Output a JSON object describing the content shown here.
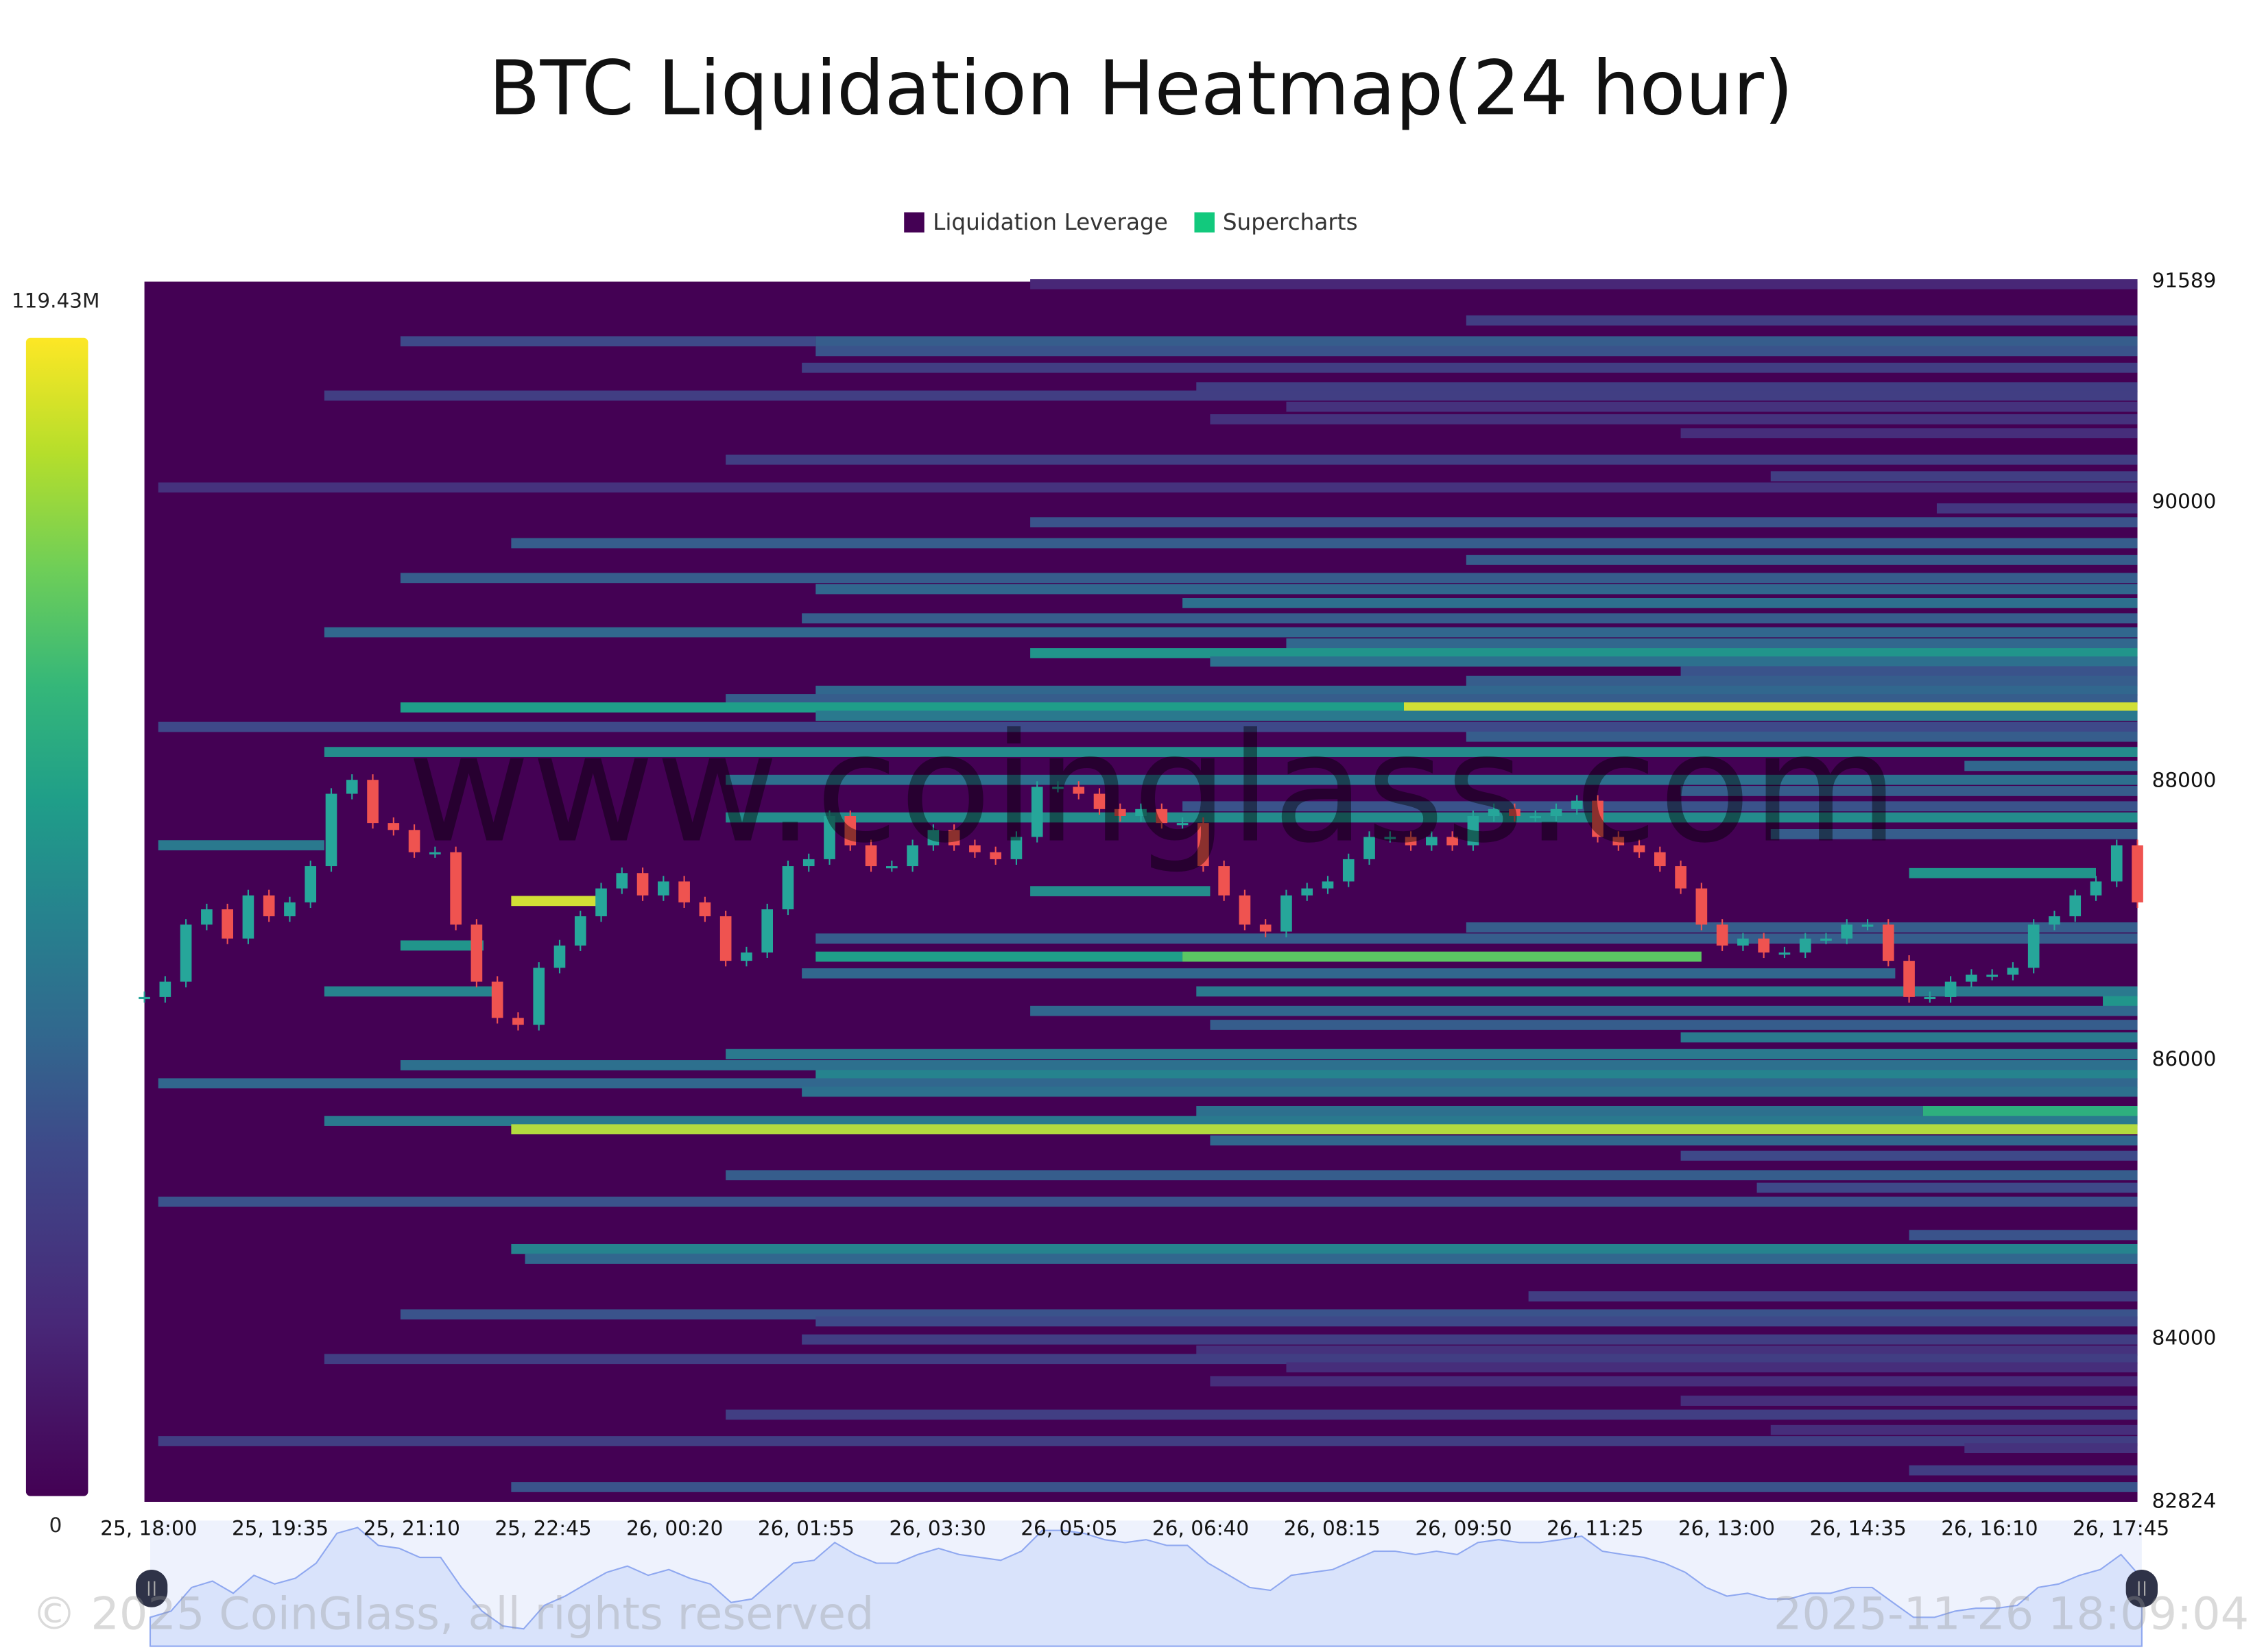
{
  "title": "BTC Liquidation Heatmap(24 hour)",
  "legend": [
    {
      "label": "Liquidation Leverage",
      "color": "#440154"
    },
    {
      "label": "Supercharts",
      "color": "#12c97d"
    }
  ],
  "watermark": "www.coinglass.com",
  "footer": {
    "copyright": "© 2025 CoinGlass, all rights reserved",
    "timestamp": "2025-11-26 18:09:04"
  },
  "colorbar": {
    "max_label": "119.43M",
    "min_label": "0",
    "max": 119.43,
    "min": 0,
    "colormap": "viridis"
  },
  "chart_data": {
    "type": "heatmap",
    "title": "BTC Liquidation Heatmap(24 hour)",
    "ylim": [
      82824,
      91589
    ],
    "y_ticks": [
      "91589",
      "90000",
      "88000",
      "86000",
      "84000",
      "82824"
    ],
    "x_range": [
      "25, 18:00",
      "26, 18:00"
    ],
    "x_ticks": [
      "25, 18:00",
      "25, 19:35",
      "25, 21:10",
      "25, 22:45",
      "26, 00:20",
      "26, 01:55",
      "26, 03:30",
      "26, 05:05",
      "26, 06:40",
      "26, 08:15",
      "26, 09:50",
      "26, 11:25",
      "26, 13:00",
      "26, 14:35",
      "26, 16:10",
      "26, 17:45"
    ],
    "background_value": 0,
    "bands_columns": [
      "price",
      "start",
      "end",
      "value_M"
    ],
    "bands": [
      [
        91570,
        "26, 04:40",
        "26, 18:00",
        15
      ],
      [
        91310,
        "26, 09:55",
        "26, 18:00",
        25
      ],
      [
        91160,
        "25, 21:05",
        "26, 02:05",
        30
      ],
      [
        91160,
        "26, 02:05",
        "26, 18:00",
        40
      ],
      [
        91090,
        "26, 02:05",
        "26, 18:00",
        35
      ],
      [
        90970,
        "26, 01:55",
        "26, 18:00",
        25
      ],
      [
        90830,
        "26, 06:40",
        "26, 18:00",
        25
      ],
      [
        90770,
        "25, 20:10",
        "26, 18:00",
        25
      ],
      [
        90690,
        "26, 07:45",
        "26, 18:00",
        20
      ],
      [
        90600,
        "26, 06:50",
        "26, 18:00",
        20
      ],
      [
        90500,
        "26, 12:30",
        "26, 18:00",
        18
      ],
      [
        90310,
        "26, 01:00",
        "26, 18:00",
        25
      ],
      [
        90190,
        "26, 13:35",
        "26, 18:00",
        25
      ],
      [
        90110,
        "25, 18:10",
        "26, 18:00",
        20
      ],
      [
        89960,
        "26, 15:35",
        "26, 18:00",
        22
      ],
      [
        89860,
        "26, 04:40",
        "26, 18:00",
        35
      ],
      [
        89710,
        "25, 22:25",
        "26, 18:00",
        40
      ],
      [
        89590,
        "26, 09:55",
        "26, 18:00",
        40
      ],
      [
        89460,
        "25, 21:05",
        "26, 18:00",
        40
      ],
      [
        89380,
        "26, 02:05",
        "26, 18:00",
        45
      ],
      [
        89280,
        "26, 06:30",
        "26, 18:00",
        50
      ],
      [
        89170,
        "26, 01:55",
        "26, 18:00",
        40
      ],
      [
        89070,
        "25, 20:10",
        "26, 18:00",
        45
      ],
      [
        88990,
        "26, 07:45",
        "26, 18:00",
        45
      ],
      [
        88920,
        "26, 04:40",
        "26, 18:00",
        70
      ],
      [
        88860,
        "26, 06:50",
        "26, 18:00",
        50
      ],
      [
        88790,
        "26, 12:30",
        "26, 18:00",
        35
      ],
      [
        88720,
        "26, 09:55",
        "26, 18:00",
        40
      ],
      [
        88650,
        "26, 02:05",
        "26, 18:00",
        45
      ],
      [
        88590,
        "26, 01:00",
        "26, 18:00",
        40
      ],
      [
        88530,
        "25, 21:05",
        "26, 09:10",
        75
      ],
      [
        88530,
        "26, 09:10",
        "26, 18:00",
        115
      ],
      [
        88470,
        "26, 02:05",
        "26, 18:00",
        55
      ],
      [
        88390,
        "25, 18:10",
        "26, 18:00",
        30
      ],
      [
        88320,
        "26, 09:55",
        "26, 18:00",
        40
      ],
      [
        88210,
        "25, 20:10",
        "26, 18:00",
        65
      ],
      [
        88110,
        "26, 15:55",
        "26, 18:00",
        45
      ],
      [
        88010,
        "26, 01:00",
        "26, 18:00",
        50
      ],
      [
        87930,
        "26, 12:30",
        "26, 18:00",
        40
      ],
      [
        87820,
        "26, 06:30",
        "26, 18:00",
        35
      ],
      [
        87740,
        "26, 01:00",
        "26, 18:00",
        65
      ],
      [
        87620,
        "26, 13:35",
        "26, 18:00",
        40
      ],
      [
        87540,
        "25, 18:10",
        "25, 20:10",
        55
      ],
      [
        87340,
        "26, 15:15",
        "26, 17:30",
        70
      ],
      [
        87210,
        "26, 04:40",
        "26, 06:50",
        65
      ],
      [
        87140,
        "25, 22:25",
        "25, 23:30",
        115
      ],
      [
        86950,
        "26, 09:55",
        "26, 18:00",
        40
      ],
      [
        86870,
        "26, 02:05",
        "26, 18:00",
        40
      ],
      [
        86820,
        "25, 21:05",
        "25, 22:05",
        70
      ],
      [
        86740,
        "26, 02:05",
        "26, 06:30",
        75
      ],
      [
        86740,
        "26, 06:30",
        "26, 12:45",
        100
      ],
      [
        86620,
        "26, 01:55",
        "26, 15:05",
        45
      ],
      [
        86490,
        "25, 20:10",
        "25, 22:15",
        60
      ],
      [
        86490,
        "26, 06:40",
        "26, 18:00",
        55
      ],
      [
        86420,
        "26, 17:35",
        "26, 18:00",
        70
      ],
      [
        86350,
        "26, 04:40",
        "26, 18:00",
        45
      ],
      [
        86250,
        "26, 06:50",
        "26, 18:00",
        40
      ],
      [
        86160,
        "26, 12:30",
        "26, 18:00",
        55
      ],
      [
        86040,
        "26, 01:00",
        "26, 18:00",
        55
      ],
      [
        85960,
        "25, 21:05",
        "26, 18:00",
        50
      ],
      [
        85890,
        "26, 02:05",
        "26, 18:00",
        60
      ],
      [
        85830,
        "25, 18:10",
        "26, 18:00",
        45
      ],
      [
        85770,
        "26, 01:55",
        "26, 18:00",
        50
      ],
      [
        85630,
        "26, 06:40",
        "26, 15:25",
        50
      ],
      [
        85630,
        "26, 15:25",
        "26, 18:00",
        85
      ],
      [
        85560,
        "25, 20:10",
        "26, 18:00",
        55
      ],
      [
        85500,
        "25, 22:25",
        "26, 18:00",
        112
      ],
      [
        85420,
        "26, 06:50",
        "26, 18:00",
        45
      ],
      [
        85310,
        "26, 12:30",
        "26, 18:00",
        30
      ],
      [
        85170,
        "26, 01:00",
        "26, 18:00",
        40
      ],
      [
        85080,
        "26, 13:25",
        "26, 18:00",
        30
      ],
      [
        84980,
        "25, 18:10",
        "26, 18:00",
        35
      ],
      [
        84740,
        "26, 15:15",
        "26, 18:00",
        35
      ],
      [
        84640,
        "25, 22:25",
        "26, 18:00",
        60
      ],
      [
        84570,
        "25, 22:35",
        "26, 18:00",
        45
      ],
      [
        84300,
        "26, 10:40",
        "26, 18:00",
        25
      ],
      [
        84170,
        "25, 21:05",
        "26, 18:00",
        35
      ],
      [
        84120,
        "26, 02:05",
        "26, 18:00",
        30
      ],
      [
        83990,
        "26, 01:55",
        "26, 18:00",
        25
      ],
      [
        83910,
        "26, 06:40",
        "26, 18:00",
        20
      ],
      [
        83850,
        "25, 20:10",
        "26, 18:00",
        25
      ],
      [
        83790,
        "26, 07:45",
        "26, 18:00",
        18
      ],
      [
        83690,
        "26, 06:50",
        "26, 18:00",
        18
      ],
      [
        83550,
        "26, 12:30",
        "26, 18:00",
        18
      ],
      [
        83450,
        "26, 01:00",
        "26, 18:00",
        25
      ],
      [
        83340,
        "26, 13:35",
        "26, 18:00",
        18
      ],
      [
        83260,
        "25, 18:10",
        "26, 18:00",
        25
      ],
      [
        83210,
        "26, 15:55",
        "26, 18:00",
        20
      ],
      [
        83050,
        "26, 15:15",
        "26, 18:00",
        25
      ],
      [
        82930,
        "25, 22:25",
        "26, 18:00",
        35
      ]
    ],
    "price_series": {
      "start": "25, 18:00",
      "interval_minutes": 15,
      "close": [
        86450,
        86560,
        86970,
        87080,
        86870,
        87180,
        87030,
        87130,
        87390,
        87910,
        88010,
        87700,
        87650,
        87490,
        87490,
        86970,
        86560,
        86300,
        86250,
        86660,
        86820,
        87030,
        87230,
        87340,
        87180,
        87280,
        87130,
        87030,
        86710,
        86770,
        87080,
        87390,
        87440,
        87750,
        87540,
        87390,
        87390,
        87540,
        87650,
        87540,
        87490,
        87440,
        87600,
        87960,
        87960,
        87910,
        87800,
        87750,
        87800,
        87700,
        87700,
        87390,
        87180,
        86970,
        86920,
        87180,
        87230,
        87280,
        87440,
        87600,
        87600,
        87540,
        87600,
        87540,
        87750,
        87800,
        87750,
        87750,
        87800,
        87860,
        87600,
        87540,
        87490,
        87390,
        87230,
        86970,
        86820,
        86870,
        86770,
        86770,
        86870,
        86870,
        86970,
        86970,
        86710,
        86450,
        86450,
        86560,
        86610,
        86610,
        86660,
        86970,
        87030,
        87180,
        87280,
        87540,
        87130
      ],
      "up_color": "#26a69a",
      "down_color": "#ef5350"
    }
  }
}
